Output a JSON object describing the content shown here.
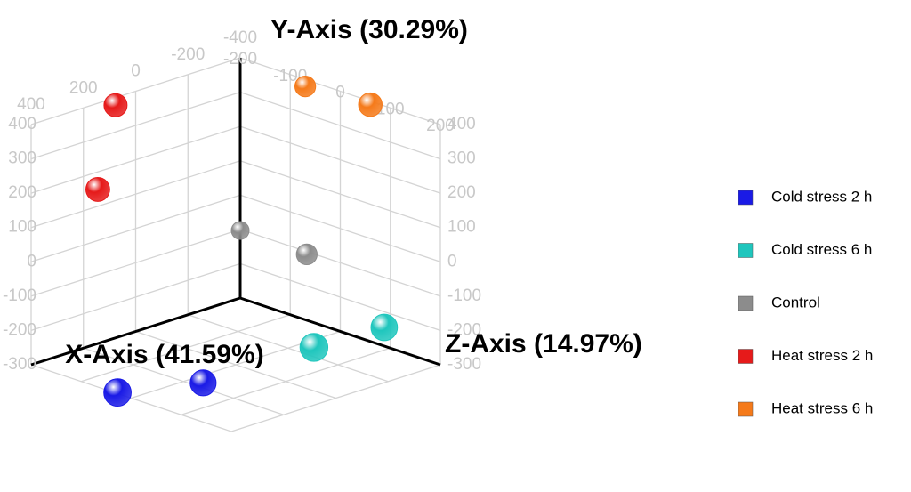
{
  "chart_data": {
    "type": "scatter3d",
    "x_label": "X-Axis (41.59%)",
    "y_label": "Y-Axis (30.29%)",
    "z_label": "Z-Axis (14.97%)",
    "xlim": [
      -400,
      400
    ],
    "ylim": [
      -300,
      400
    ],
    "zlim": [
      -200,
      200
    ],
    "xticks": [
      -400,
      -200,
      0,
      200,
      400
    ],
    "yticks": [
      -300,
      -200,
      -100,
      0,
      100,
      200,
      300,
      400
    ],
    "zticks": [
      -200,
      -100,
      0,
      100,
      200
    ],
    "grid": true,
    "legend": "right",
    "series": [
      {
        "name": "Cold stress 2 h",
        "color": "#1a1ae6",
        "x": [
          261,
          29
        ],
        "y": [
          -366,
          -370
        ],
        "z": [
          -100,
          -50
        ]
      },
      {
        "name": "Cold stress 6 h",
        "color": "#1fc6bd",
        "x": [
          -100,
          -300
        ],
        "y": [
          -223,
          -196
        ],
        "z": [
          104,
          140
        ]
      },
      {
        "name": "Control",
        "color": "#8c8c8c",
        "x": [
          -400,
          -400
        ],
        "y": [
          -103,
          -108
        ],
        "z": [
          -200,
          -67
        ]
      },
      {
        "name": "Heat stress 2 h",
        "color": "#e61a1a",
        "x": [
          77,
          145
        ],
        "y": [
          378,
          149
        ],
        "z": [
          -200,
          -200
        ]
      },
      {
        "name": "Heat stress 6 h",
        "color": "#f57a1a",
        "x": [
          -400,
          -400
        ],
        "y": [
          380,
          390
        ],
        "z": [
          -70,
          60
        ]
      }
    ]
  }
}
